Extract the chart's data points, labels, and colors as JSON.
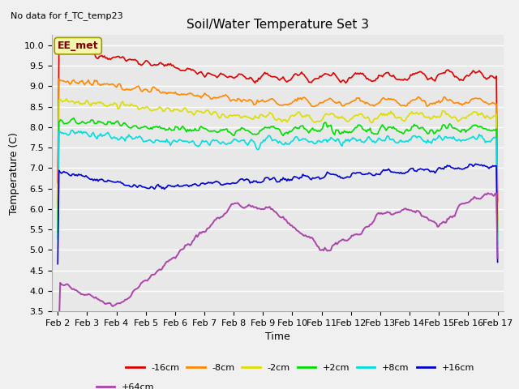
{
  "title": "Soil/Water Temperature Set 3",
  "subtitle": "No data for f_TC_temp23",
  "xlabel": "Time",
  "ylabel": "Temperature (C)",
  "ylim": [
    3.5,
    10.25
  ],
  "yticks": [
    3.5,
    4.0,
    4.5,
    5.0,
    5.5,
    6.0,
    6.5,
    7.0,
    7.5,
    8.0,
    8.5,
    9.0,
    9.5,
    10.0
  ],
  "xtick_labels": [
    "Feb 2",
    "Feb 3",
    "Feb 4",
    "Feb 5",
    "Feb 6",
    "Feb 7",
    "Feb 8",
    "Feb 9",
    "Feb 10",
    "Feb 11",
    "Feb 12",
    "Feb 13",
    "Feb 14",
    "Feb 15",
    "Feb 16",
    "Feb 17"
  ],
  "legend_label": "EE_met",
  "series_colors": {
    "-16cm": "#dd0000",
    "-8cm": "#ff8800",
    "-2cm": "#dddd00",
    "+2cm": "#00dd00",
    "+8cm": "#00dddd",
    "+16cm": "#0000cc",
    "+64cm": "#aa44aa"
  },
  "plot_bg": "#e8e8e8",
  "fig_bg": "#f0f0f0",
  "grid_color": "#ffffff",
  "subtitle_fontsize": 8,
  "title_fontsize": 11,
  "axis_label_fontsize": 9,
  "tick_fontsize": 8,
  "legend_fontsize": 8
}
